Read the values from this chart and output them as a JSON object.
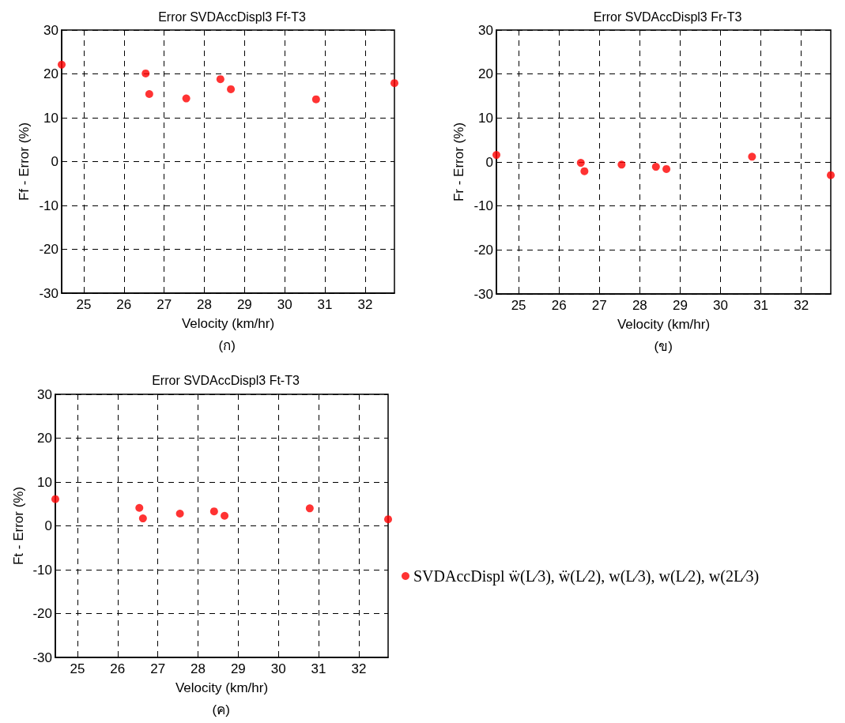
{
  "chart_data": [
    {
      "type": "scatter",
      "title": "Error SVDAccDispl3 Ff-T3",
      "xlabel": "Velocity (km/hr)",
      "ylabel": "Ff - Error (%)",
      "annotations": [
        "(ก)"
      ],
      "x": [
        24.45,
        26.54,
        26.63,
        27.55,
        28.4,
        28.66,
        30.78,
        32.73
      ],
      "series": [
        {
          "color": "#ff0000",
          "values": [
            22.1,
            20.1,
            15.4,
            14.4,
            18.8,
            16.5,
            14.2,
            17.9
          ]
        }
      ],
      "xlim": [
        24.45,
        32.73
      ],
      "xticks": [
        25,
        26,
        27,
        28,
        29,
        30,
        31,
        32
      ],
      "ylim": [
        -30,
        30
      ],
      "yticks": [
        -30,
        -20,
        -10,
        0,
        10,
        20,
        30
      ],
      "grid": true,
      "marker": "circle",
      "legend": false
    },
    {
      "type": "scatter",
      "title": "Error SVDAccDispl3 Fr-T3",
      "xlabel": "Velocity (km/hr)",
      "ylabel": "Fr - Error (%)",
      "annotations": [
        "(ข)"
      ],
      "x": [
        24.45,
        26.54,
        26.63,
        27.55,
        28.4,
        28.66,
        30.78,
        32.73
      ],
      "series": [
        {
          "color": "#ff0000",
          "values": [
            1.6,
            -0.2,
            -2.1,
            -0.6,
            -1.1,
            -1.6,
            1.2,
            -3.0
          ]
        }
      ],
      "xlim": [
        24.45,
        32.73
      ],
      "xticks": [
        25,
        26,
        27,
        28,
        29,
        30,
        31,
        32
      ],
      "ylim": [
        -30,
        30
      ],
      "yticks": [
        -30,
        -20,
        -10,
        0,
        10,
        20,
        30
      ],
      "grid": true,
      "marker": "circle",
      "legend": false
    },
    {
      "type": "scatter",
      "title": "Error SVDAccDispl3 Ft-T3",
      "xlabel": "Velocity (km/hr)",
      "ylabel": "Ft - Error (%)",
      "annotations": [
        "(ค)"
      ],
      "x": [
        24.45,
        26.54,
        26.63,
        27.55,
        28.4,
        28.66,
        30.78,
        32.73
      ],
      "series": [
        {
          "name": "SVDAccDispl ẅ(L⁄3), ẅ(L⁄2), w(L⁄3), w(L⁄2), w(2L⁄3)",
          "color": "#ff0000",
          "values": [
            6.1,
            4.1,
            1.7,
            2.8,
            3.3,
            2.3,
            4.0,
            1.5
          ]
        }
      ],
      "xlim": [
        24.45,
        32.73
      ],
      "xticks": [
        25,
        26,
        27,
        28,
        29,
        30,
        31,
        32
      ],
      "ylim": [
        -30,
        30
      ],
      "yticks": [
        -30,
        -20,
        -10,
        0,
        10,
        20,
        30
      ],
      "grid": true,
      "marker": "circle",
      "legend": "right"
    }
  ]
}
